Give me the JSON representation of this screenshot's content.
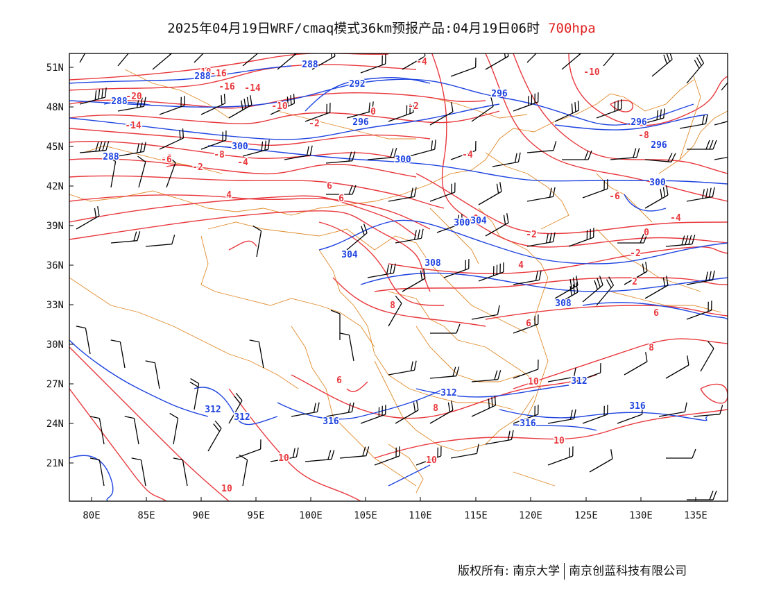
{
  "title": {
    "main": "2025年04月19日WRF/cmaq模式36km预报产品:04月19日06时",
    "level": "700hpa"
  },
  "colors": {
    "temperature": "#e8383d",
    "geopotential": "#1f44e0",
    "border": "#e08a2a",
    "wind": "#000000"
  },
  "axes": {
    "lat_labels": [
      "51N",
      "48N",
      "45N",
      "42N",
      "39N",
      "36N",
      "33N",
      "30N",
      "27N",
      "24N",
      "21N"
    ],
    "lon_labels": [
      "80E",
      "85E",
      "90E",
      "95E",
      "100E",
      "105E",
      "110E",
      "115E",
      "120E",
      "125E",
      "130E",
      "135E"
    ],
    "lon_range": [
      78,
      138
    ],
    "lat_range": [
      18.5,
      52
    ]
  },
  "contour_labels": {
    "temperature": [
      "-4",
      "-16",
      "-18",
      "-20",
      "-14",
      "-14",
      "-16",
      "-10",
      "-6",
      "-8",
      "-2",
      "-2",
      "0",
      "-4",
      "0",
      "4",
      "6",
      "6",
      "8",
      "-2",
      "-2",
      "-10",
      "-8",
      "-6",
      "-4",
      "-2",
      "0",
      "2",
      "4",
      "6",
      "8",
      "10",
      "6",
      "8",
      "10",
      "10",
      "10",
      "10",
      "6",
      "-6",
      "-4"
    ],
    "geopotential": [
      "288",
      "288",
      "288",
      "288",
      "292",
      "296",
      "296",
      "296",
      "296",
      "300",
      "300",
      "300",
      "300",
      "304",
      "304",
      "308",
      "308",
      "312",
      "312",
      "312",
      "312",
      "316",
      "316",
      "316"
    ]
  },
  "footer": {
    "left": "版权所有: 南京大学",
    "right": "南京创蓝科技有限公司"
  }
}
